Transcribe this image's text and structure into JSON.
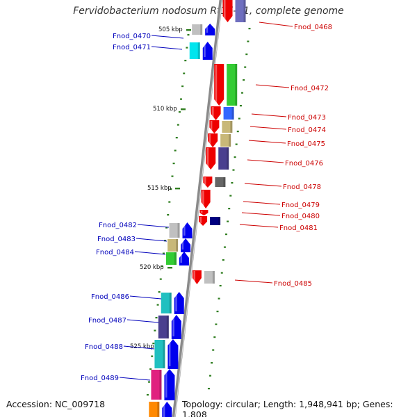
{
  "title": "Fervidobacterium nodosum Rt17-B1, complete genome",
  "footer": {
    "accession": "Accession: NC_009718",
    "topology": "Topology: circular; Length: 1,948,941 bp; Genes: 1,808"
  },
  "colors": {
    "backbone": "#8a8a8a",
    "tick": "#2e7d1e",
    "label_forward": "#cc0000",
    "label_reverse": "#0000bb",
    "arrow_forward": "#ee0000",
    "arrow_reverse": "#0000ee"
  },
  "kbp_labels": [
    "505 kbp",
    "510 kbp",
    "515 kbp",
    "520 kbp",
    "525 kbp"
  ],
  "genes_forward": [
    {
      "label": "Fnod_0468",
      "arrow_color": "#ee0000",
      "cog_color": "#6f6fbf"
    },
    {
      "label": "Fnod_0472",
      "arrow_color": "#ee0000",
      "cog_color": "#33cc33"
    },
    {
      "label": "Fnod_0473",
      "arrow_color": "#ee0000",
      "cog_color": "#3366ff"
    },
    {
      "label": "Fnod_0474",
      "arrow_color": "#ee0000",
      "cog_color": "#c8b878"
    },
    {
      "label": "Fnod_0475",
      "arrow_color": "#ee0000",
      "cog_color": "#c8b878"
    },
    {
      "label": "Fnod_0476",
      "arrow_color": "#ee0000",
      "cog_color": "#4a3f8f"
    },
    {
      "label": "Fnod_0478",
      "arrow_color": "#ee0000",
      "cog_color": "#666666"
    },
    {
      "label": "Fnod_0479",
      "arrow_color": "#ee0000",
      "cog_color": ""
    },
    {
      "label": "Fnod_0480",
      "arrow_color": "#ee0000",
      "cog_color": ""
    },
    {
      "label": "Fnod_0481",
      "arrow_color": "#ee0000",
      "cog_color": "#000080"
    },
    {
      "label": "Fnod_0485",
      "arrow_color": "#ee0000",
      "cog_color": "#c0c0c0"
    }
  ],
  "genes_reverse": [
    {
      "label": "Fnod_0470",
      "arrow_color": "#0000ee",
      "cog_color": "#c0c0c0"
    },
    {
      "label": "Fnod_0471",
      "arrow_color": "#0000ee",
      "cog_color": "#00e5ee"
    },
    {
      "label": "Fnod_0482",
      "arrow_color": "#0000ee",
      "cog_color": "#c0c0c0"
    },
    {
      "label": "Fnod_0483",
      "arrow_color": "#0000ee",
      "cog_color": "#c8b878"
    },
    {
      "label": "Fnod_0484",
      "arrow_color": "#0000ee",
      "cog_color": "#33cc33"
    },
    {
      "label": "Fnod_0486",
      "arrow_color": "#0000ee",
      "cog_color": "#20c0c0"
    },
    {
      "label": "Fnod_0487",
      "arrow_color": "#0000ee",
      "cog_color": "#4a3f8f"
    },
    {
      "label": "Fnod_0488",
      "arrow_color": "#0000ee",
      "cog_color": "#20c0c0"
    },
    {
      "label": "Fnod_0489",
      "arrow_color": "#0000ee",
      "cog_color": "#e0207f"
    }
  ]
}
